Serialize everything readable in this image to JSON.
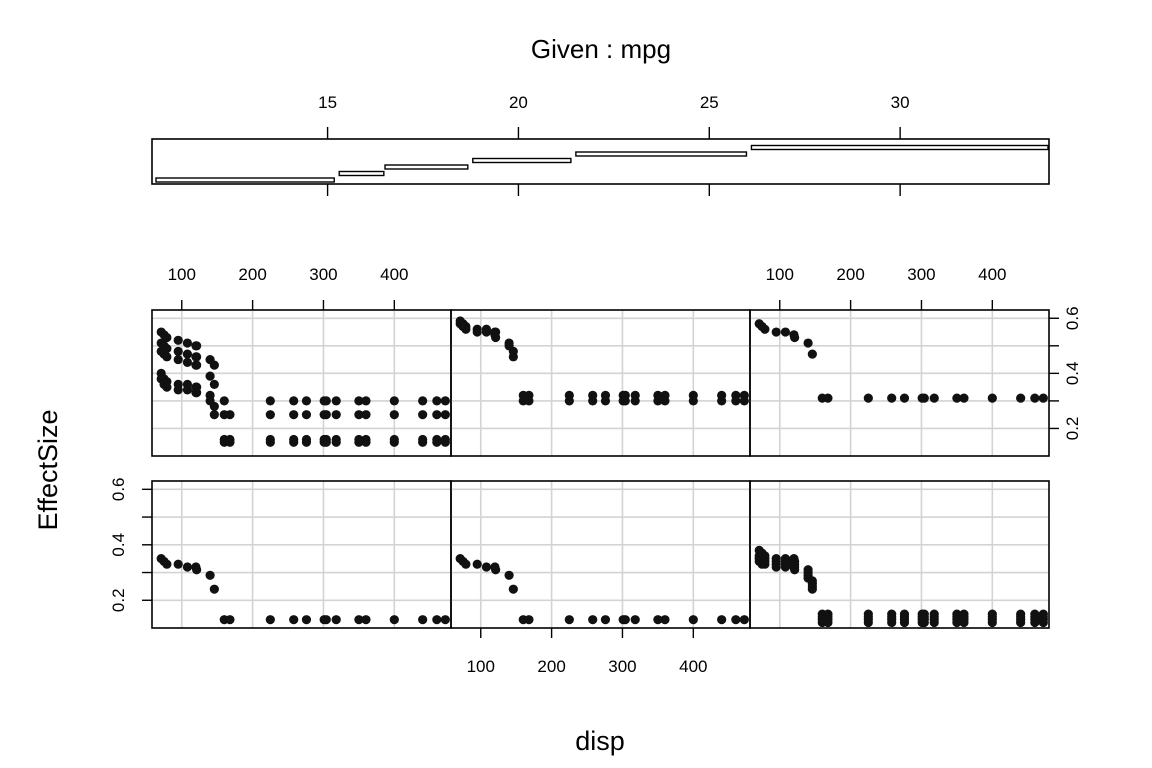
{
  "chart_data": {
    "type": "coplot",
    "title": "Given : mpg",
    "xlabel": "disp",
    "ylabel": "EffectSize",
    "xlim": [
      58,
      480
    ],
    "ylim": [
      0.1,
      0.63
    ],
    "x_ticks": [
      "100",
      "200",
      "300",
      "400"
    ],
    "y_ticks": [
      "0.2",
      "0.4",
      "0.6"
    ],
    "grid": true,
    "given": {
      "name": "mpg",
      "range": [
        10.4,
        33.9
      ],
      "ticks": [
        "15",
        "20",
        "25",
        "30"
      ],
      "intervals": [
        [
          10.4,
          15.2
        ],
        [
          15.2,
          16.5
        ],
        [
          16.4,
          18.7
        ],
        [
          18.7,
          21.4
        ],
        [
          21.4,
          26.0
        ],
        [
          26.0,
          33.9
        ]
      ]
    },
    "x_values": [
      71,
      75,
      79,
      95,
      108,
      120,
      121,
      140,
      146,
      160,
      168,
      225,
      258,
      276,
      301,
      304,
      318,
      350,
      360,
      400,
      440,
      460,
      472
    ],
    "panels": [
      {
        "panel": "1",
        "series": [
          {
            "x": [
              71,
              75,
              79,
              95,
              108,
              120,
              121
            ],
            "y": [
              0.55,
              0.54,
              0.53,
              0.52,
              0.51,
              0.5,
              0.5
            ]
          },
          {
            "x": [
              71,
              75,
              79,
              95,
              108,
              120,
              121
            ],
            "y": [
              0.51,
              0.5,
              0.49,
              0.48,
              0.47,
              0.46,
              0.46
            ]
          },
          {
            "x": [
              71,
              75,
              79,
              95,
              108,
              120,
              121
            ],
            "y": [
              0.48,
              0.47,
              0.46,
              0.45,
              0.44,
              0.43,
              0.43
            ]
          },
          {
            "x": [
              71,
              75,
              79,
              95,
              108,
              120,
              121
            ],
            "y": [
              0.4,
              0.38,
              0.37,
              0.36,
              0.36,
              0.35,
              0.35
            ]
          },
          {
            "x": [
              71,
              75,
              79,
              95,
              108,
              120,
              121
            ],
            "y": [
              0.38,
              0.36,
              0.35,
              0.34,
              0.34,
              0.33,
              0.33
            ]
          },
          {
            "x": [
              140,
              146,
              160
            ],
            "y": [
              0.45,
              0.43,
              0.3
            ]
          },
          {
            "x": [
              140,
              146,
              160
            ],
            "y": [
              0.39,
              0.36,
              0.25
            ]
          },
          {
            "x": [
              140,
              146,
              160
            ],
            "y": [
              0.32,
              0.28,
              0.16
            ]
          },
          {
            "x": [
              140,
              146,
              160
            ],
            "y": [
              0.3,
              0.25,
              0.15
            ]
          },
          {
            "x": [
              225,
              258,
              276,
              301,
              304,
              318,
              350,
              360,
              400,
              440,
              460,
              472
            ],
            "y": [
              0.3,
              0.3,
              0.3,
              0.3,
              0.3,
              0.3,
              0.3,
              0.3,
              0.3,
              0.3,
              0.3,
              0.3
            ]
          },
          {
            "x": [
              168,
              225,
              258,
              276,
              301,
              304,
              318,
              350,
              360,
              400,
              440,
              460,
              472
            ],
            "y": [
              0.25,
              0.25,
              0.25,
              0.25,
              0.25,
              0.25,
              0.25,
              0.25,
              0.25,
              0.25,
              0.25,
              0.25,
              0.25
            ]
          },
          {
            "x": [
              168,
              225,
              258,
              276,
              301,
              304,
              318,
              350,
              360,
              400,
              440,
              460,
              472
            ],
            "y": [
              0.16,
              0.16,
              0.16,
              0.16,
              0.16,
              0.16,
              0.16,
              0.16,
              0.16,
              0.16,
              0.16,
              0.16,
              0.16
            ]
          },
          {
            "x": [
              168,
              225,
              258,
              276,
              301,
              304,
              318,
              350,
              360,
              400,
              440,
              460,
              472
            ],
            "y": [
              0.15,
              0.15,
              0.15,
              0.15,
              0.15,
              0.15,
              0.15,
              0.15,
              0.15,
              0.15,
              0.15,
              0.15,
              0.15
            ]
          }
        ]
      },
      {
        "panel": "2",
        "series": [
          {
            "x": [
              71,
              75,
              79,
              95,
              108,
              120,
              121,
              140,
              146
            ],
            "y": [
              0.59,
              0.58,
              0.57,
              0.56,
              0.56,
              0.55,
              0.55,
              0.51,
              0.48
            ]
          },
          {
            "x": [
              71,
              75,
              79,
              95,
              108,
              120,
              121,
              140,
              146
            ],
            "y": [
              0.58,
              0.57,
              0.56,
              0.55,
              0.55,
              0.54,
              0.53,
              0.5,
              0.46
            ]
          },
          {
            "x": [
              160,
              168,
              225,
              258,
              276,
              301,
              304,
              318,
              350,
              360,
              400,
              440,
              460,
              472
            ],
            "y": [
              0.32,
              0.32,
              0.32,
              0.32,
              0.32,
              0.32,
              0.32,
              0.32,
              0.32,
              0.32,
              0.32,
              0.32,
              0.32,
              0.32
            ]
          },
          {
            "x": [
              160,
              168,
              225,
              258,
              276,
              301,
              304,
              318,
              350,
              360,
              400,
              440,
              460,
              472
            ],
            "y": [
              0.3,
              0.3,
              0.3,
              0.3,
              0.3,
              0.3,
              0.3,
              0.3,
              0.3,
              0.3,
              0.3,
              0.3,
              0.3,
              0.3
            ]
          }
        ]
      },
      {
        "panel": "3",
        "series": [
          {
            "x": [
              71,
              75,
              79,
              95,
              108,
              120,
              121,
              140,
              146,
              160,
              168,
              225,
              258,
              276,
              301,
              304,
              318,
              350,
              360,
              400,
              440,
              460,
              472
            ],
            "y": [
              0.58,
              0.57,
              0.56,
              0.55,
              0.55,
              0.54,
              0.53,
              0.51,
              0.47,
              0.31,
              0.31,
              0.31,
              0.31,
              0.31,
              0.31,
              0.31,
              0.31,
              0.31,
              0.31,
              0.31,
              0.31,
              0.31,
              0.31
            ]
          }
        ]
      },
      {
        "panel": "4",
        "series": [
          {
            "x": [
              71,
              75,
              79,
              95,
              108,
              120,
              121,
              140,
              146,
              160,
              168,
              225,
              258,
              276,
              301,
              304,
              318,
              350,
              360,
              400,
              440,
              460,
              472
            ],
            "y": [
              0.35,
              0.34,
              0.33,
              0.33,
              0.32,
              0.32,
              0.31,
              0.29,
              0.24,
              0.13,
              0.13,
              0.13,
              0.13,
              0.13,
              0.13,
              0.13,
              0.13,
              0.13,
              0.13,
              0.13,
              0.13,
              0.13,
              0.13
            ]
          }
        ]
      },
      {
        "panel": "5",
        "series": [
          {
            "x": [
              71,
              75,
              79,
              95,
              108,
              120,
              121,
              140,
              146,
              160,
              168,
              225,
              258,
              276,
              301,
              304,
              318,
              350,
              360,
              400,
              440,
              460,
              472
            ],
            "y": [
              0.35,
              0.34,
              0.33,
              0.33,
              0.32,
              0.32,
              0.31,
              0.29,
              0.24,
              0.13,
              0.13,
              0.13,
              0.13,
              0.13,
              0.13,
              0.13,
              0.13,
              0.13,
              0.13,
              0.13,
              0.13,
              0.13,
              0.13
            ]
          }
        ]
      },
      {
        "panel": "6",
        "series": [
          {
            "x": [
              71,
              75,
              79,
              95,
              108,
              120,
              121,
              140,
              146
            ],
            "y": [
              0.38,
              0.37,
              0.36,
              0.35,
              0.35,
              0.35,
              0.34,
              0.31,
              0.27
            ]
          },
          {
            "x": [
              71,
              75,
              79,
              95,
              108,
              120,
              121,
              140,
              146
            ],
            "y": [
              0.36,
              0.35,
              0.35,
              0.34,
              0.34,
              0.34,
              0.33,
              0.3,
              0.26
            ]
          },
          {
            "x": [
              71,
              75,
              79,
              95,
              108,
              120,
              121,
              140,
              146
            ],
            "y": [
              0.35,
              0.34,
              0.34,
              0.33,
              0.33,
              0.33,
              0.32,
              0.29,
              0.25
            ]
          },
          {
            "x": [
              71,
              75,
              79,
              95,
              108,
              120,
              121,
              140,
              146
            ],
            "y": [
              0.34,
              0.33,
              0.33,
              0.32,
              0.32,
              0.32,
              0.31,
              0.28,
              0.24
            ]
          },
          {
            "x": [
              160,
              168,
              225,
              258,
              276,
              301,
              304,
              318,
              350,
              360,
              400,
              440,
              460,
              472
            ],
            "y": [
              0.15,
              0.15,
              0.15,
              0.15,
              0.15,
              0.15,
              0.15,
              0.15,
              0.15,
              0.15,
              0.15,
              0.15,
              0.15,
              0.15
            ]
          },
          {
            "x": [
              160,
              168,
              225,
              258,
              276,
              301,
              304,
              318,
              350,
              360,
              400,
              440,
              460,
              472
            ],
            "y": [
              0.14,
              0.14,
              0.14,
              0.14,
              0.14,
              0.14,
              0.14,
              0.14,
              0.14,
              0.14,
              0.14,
              0.14,
              0.14,
              0.14
            ]
          },
          {
            "x": [
              160,
              168,
              225,
              258,
              276,
              301,
              304,
              318,
              350,
              360,
              400,
              440,
              460,
              472
            ],
            "y": [
              0.13,
              0.13,
              0.13,
              0.13,
              0.13,
              0.13,
              0.13,
              0.13,
              0.13,
              0.13,
              0.13,
              0.13,
              0.13,
              0.13
            ]
          },
          {
            "x": [
              160,
              168,
              225,
              258,
              276,
              301,
              304,
              318,
              350,
              360,
              400,
              440,
              460,
              472
            ],
            "y": [
              0.12,
              0.12,
              0.12,
              0.12,
              0.12,
              0.12,
              0.12,
              0.12,
              0.12,
              0.12,
              0.12,
              0.12,
              0.12,
              0.12
            ]
          }
        ]
      }
    ]
  }
}
